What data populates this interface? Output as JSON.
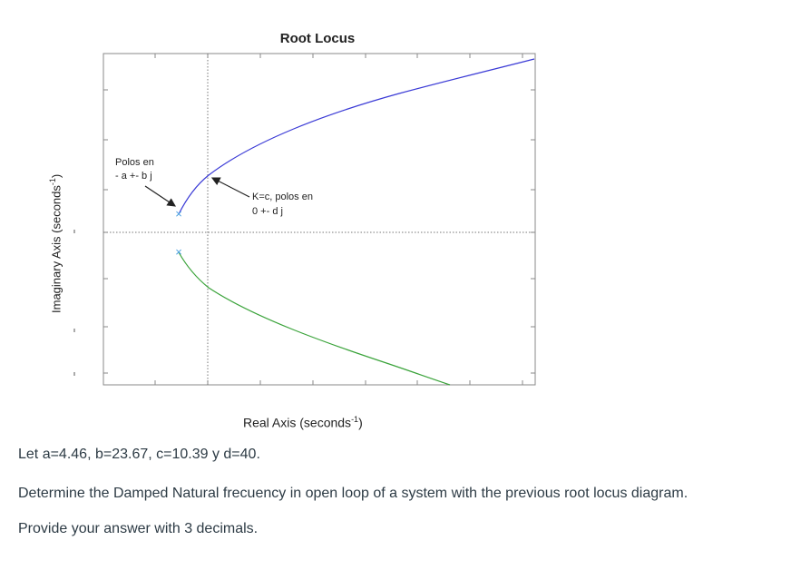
{
  "chart_data": {
    "type": "line",
    "title": "Root Locus",
    "xlabel_main": "Real Axis (seconds",
    "xlabel_sup": "-1",
    "xlabel_end": ")",
    "ylabel_main": "Imaginary Axis (seconds",
    "ylabel_sup": "-1",
    "ylabel_end": ")",
    "grid": false,
    "series": [],
    "markers": [
      {
        "symbol": "×",
        "label": "upper pole"
      },
      {
        "symbol": "×",
        "label": "lower pole"
      }
    ],
    "annotations": [
      {
        "lines": [
          "Polos en",
          "- a +- b j"
        ]
      },
      {
        "lines": [
          "K=c, polos en",
          "0 +- d j"
        ]
      }
    ],
    "colors": {
      "upper_branch": "#3b3bd6",
      "lower_branch": "#3aa33a",
      "pole": "#4aa0e0",
      "axes": "#888888"
    }
  },
  "question": {
    "line1": "Let a=4.46, b=23.67, c=10.39 y d=40.",
    "line2": "Determine the Damped Natural frecuency in open loop of a system with the previous root locus diagram.",
    "line3": "Provide your answer with 3 decimals."
  }
}
